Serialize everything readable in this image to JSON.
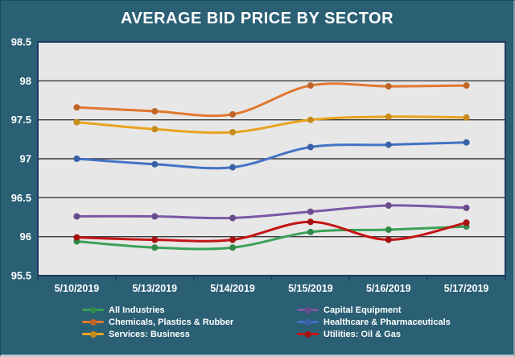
{
  "colors": {
    "background": "#2A5F74",
    "plot_background": "#E7E7E7",
    "plot_border": "#1F3864",
    "gridline": "#3B3B3B",
    "text": "#FFFFFF"
  },
  "chart_data": {
    "type": "line",
    "title": "AVERAGE BID PRICE BY SECTOR",
    "xlabel": "",
    "ylabel": "",
    "categories": [
      "5/10/2019",
      "5/13/2019",
      "5/14/2019",
      "5/15/2019",
      "5/16/2019",
      "5/17/2019"
    ],
    "series": [
      {
        "name": "All Industries",
        "color": "#3AA257",
        "values": [
          95.94,
          95.86,
          95.86,
          96.06,
          96.09,
          96.13
        ]
      },
      {
        "name": "Capital Equipment",
        "color": "#7C58A5",
        "values": [
          96.26,
          96.26,
          96.24,
          96.32,
          96.4,
          96.37
        ]
      },
      {
        "name": "Chemicals, Plastics & Rubber",
        "color": "#E1772E",
        "values": [
          97.66,
          97.61,
          97.57,
          97.94,
          97.93,
          97.94
        ]
      },
      {
        "name": "Healthcare & Pharmaceuticals",
        "color": "#4472C4",
        "values": [
          97.0,
          96.93,
          96.89,
          97.15,
          97.18,
          97.21
        ]
      },
      {
        "name": "Services: Business",
        "color": "#EAA31F",
        "values": [
          97.47,
          97.38,
          97.34,
          97.5,
          97.54,
          97.53
        ]
      },
      {
        "name": "Utilities: Oil & Gas",
        "color": "#C41414",
        "values": [
          95.99,
          95.96,
          95.96,
          96.19,
          95.96,
          96.18
        ]
      }
    ],
    "ylim": [
      95.5,
      98.5
    ],
    "yticks": [
      95.5,
      96,
      96.5,
      97,
      97.5,
      98,
      98.5
    ],
    "grid": true,
    "legend_position": "bottom",
    "line_style": "smooth",
    "marker": "circle"
  }
}
